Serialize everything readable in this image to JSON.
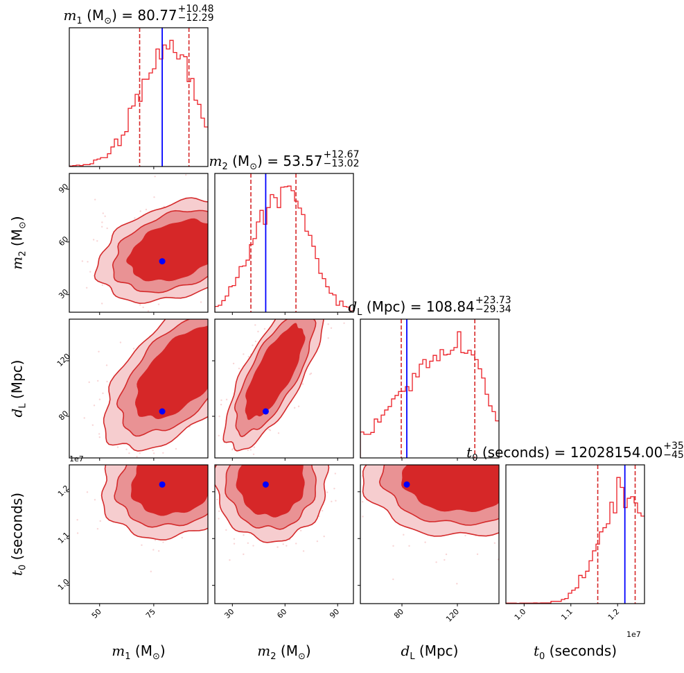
{
  "chart_data": {
    "type": "corner",
    "contour_levels_sigma": [
      1.2,
      1.6,
      2.0
    ],
    "equals": " = ",
    "parameters": [
      {
        "key": "m1",
        "label": [
          {
            "t": "m",
            "s": "it"
          },
          {
            "t": "1",
            "s": "sub"
          },
          {
            "t": " (M"
          },
          {
            "t": "⊙",
            "s": "sub"
          },
          {
            "t": ")"
          }
        ],
        "range": [
          36,
          100
        ],
        "ticks": [
          50,
          75
        ],
        "tick_labels": [
          "50",
          "75"
        ],
        "truth": 78.9,
        "quantiles": [
          68.48,
          91.25
        ],
        "title_value": "80.77",
        "title_plus": "+10.48",
        "title_minus": "−12.29",
        "hist": [
          2,
          4,
          6,
          4,
          8,
          8,
          12,
          28,
          32,
          38,
          38,
          55,
          84,
          118,
          90,
          135,
          150,
          250,
          260,
          310,
          280,
          375,
          375,
          402,
          420,
          505,
          462,
          522,
          505,
          542,
          490,
          462,
          480,
          472,
          365,
          378,
          285,
          267,
          208,
          170
        ]
      },
      {
        "key": "m2",
        "label": [
          {
            "t": "m",
            "s": "it"
          },
          {
            "t": "2",
            "s": "sub"
          },
          {
            "t": " (M"
          },
          {
            "t": "⊙",
            "s": "sub"
          },
          {
            "t": ")"
          }
        ],
        "range": [
          20,
          99
        ],
        "ticks": [
          30,
          60,
          90
        ],
        "tick_labels": [
          "30",
          "60",
          "90"
        ],
        "truth": 49,
        "quantiles": [
          40.55,
          66.24
        ],
        "title_value": "53.57",
        "title_plus": "+12.67",
        "title_minus": "−13.02",
        "hist": [
          25,
          30,
          50,
          70,
          110,
          115,
          150,
          197,
          200,
          225,
          292,
          318,
          390,
          440,
          380,
          452,
          508,
          495,
          452,
          540,
          542,
          545,
          525,
          480,
          450,
          422,
          350,
          332,
          285,
          232,
          168,
          145,
          110,
          82,
          75,
          30,
          48,
          25,
          22,
          5
        ]
      },
      {
        "key": "dL",
        "label": [
          {
            "t": "d",
            "s": "it"
          },
          {
            "t": "L",
            "s": "sub"
          },
          {
            "t": " (Mpc)"
          }
        ],
        "range": [
          50,
          150
        ],
        "ticks": [
          80,
          120
        ],
        "tick_labels": [
          "80",
          "120"
        ],
        "truth": 83.5,
        "quantiles": [
          79.5,
          132.57
        ],
        "title_value": "108.84",
        "title_plus": "+23.73",
        "title_minus": "−29.34",
        "hist": [
          112,
          102,
          102,
          110,
          168,
          155,
          185,
          207,
          222,
          255,
          270,
          287,
          288,
          308,
          290,
          365,
          350,
          405,
          425,
          390,
          418,
          443,
          420,
          468,
          445,
          448,
          465,
          477,
          545,
          455,
          452,
          465,
          445,
          425,
          385,
          345,
          275,
          225,
          200,
          160
        ]
      },
      {
        "key": "t0",
        "label": [
          {
            "t": "t",
            "s": "it"
          },
          {
            "t": "0",
            "s": "sub"
          },
          {
            "t": " (seconds)"
          }
        ],
        "range": [
          0.961,
          1.2575
        ],
        "ticks": [
          1.0,
          1.1,
          1.2
        ],
        "tick_labels": [
          "1.0",
          "1.1",
          "1.2"
        ],
        "scale_text": "1e7",
        "truth": 1.2155,
        "quantiles": [
          1.1575,
          1.2375
        ],
        "title_value": "12028154.00",
        "title_plus": "+35",
        "title_minus": "−45",
        "hist": [
          2,
          2,
          2,
          1,
          2,
          2,
          2,
          2,
          3,
          2,
          3,
          3,
          3,
          10,
          10,
          10,
          18,
          22,
          45,
          58,
          68,
          122,
          112,
          140,
          185,
          228,
          257,
          310,
          328,
          345,
          438,
          392,
          545,
          502,
          415,
          455,
          462,
          435,
          392,
          378
        ]
      }
    ],
    "pairs": [
      {
        "x": 0,
        "y": 1,
        "center": [
          85,
          55
        ],
        "sigma": [
          18,
          14.5
        ],
        "rho": 0.35
      },
      {
        "x": 0,
        "y": 2,
        "center": [
          88,
          112
        ],
        "sigma": [
          18,
          28
        ],
        "rho": 0.6
      },
      {
        "x": 1,
        "y": 2,
        "center": [
          54,
          112
        ],
        "sigma": [
          14,
          28
        ],
        "rho": 0.75
      },
      {
        "x": 0,
        "y": 3,
        "center": [
          85,
          1.225
        ],
        "sigma": [
          17,
          0.062
        ],
        "rho": 0.2
      },
      {
        "x": 1,
        "y": 3,
        "center": [
          52,
          1.225
        ],
        "sigma": [
          16,
          0.065
        ],
        "rho": 0.0
      },
      {
        "x": 2,
        "y": 3,
        "center": [
          122,
          1.235
        ],
        "sigma": [
          35,
          0.065
        ],
        "rho": 0.0
      }
    ],
    "colors": {
      "contour_dark": "#d62728",
      "contour_mid": "#e99294",
      "contour_light": "#f6cdcf",
      "contour_line": "#d42a2b",
      "hist_line": "#ec1c24",
      "quantile_line": "#d62728",
      "truth": "#0000ff",
      "samples": "#f3b9bb"
    }
  }
}
